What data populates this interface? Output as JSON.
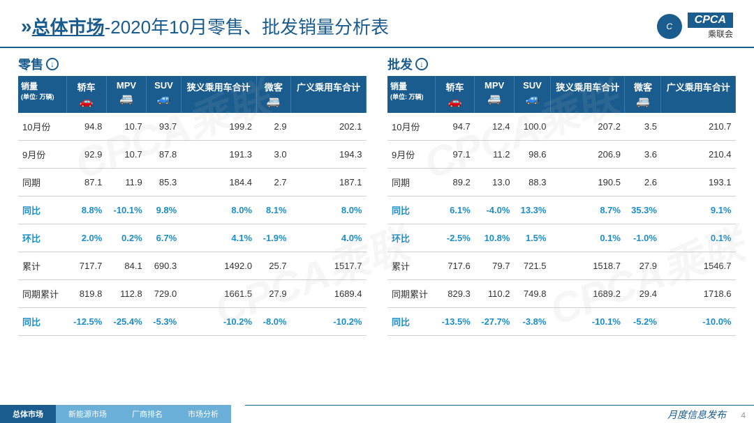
{
  "header": {
    "title_main": "总体市场",
    "title_sub": "-2020年10月零售、批发销量分析表",
    "logo_text": "CPCA",
    "logo_sub": "乘联会"
  },
  "columns": [
    {
      "label": "销量",
      "unit": "(单位: 万辆)",
      "icon": ""
    },
    {
      "label": "轿车",
      "icon": "🚗"
    },
    {
      "label": "MPV",
      "icon": "🚐"
    },
    {
      "label": "SUV",
      "icon": "🚙"
    },
    {
      "label": "狭义乘用车合计",
      "icon": ""
    },
    {
      "label": "微客",
      "icon": "🚐"
    },
    {
      "label": "广义乘用车合计",
      "icon": ""
    }
  ],
  "tables": {
    "retail": {
      "title": "零售",
      "rows": [
        {
          "label": "10月份",
          "hl": false,
          "v": [
            "94.8",
            "10.7",
            "93.7",
            "199.2",
            "2.9",
            "202.1"
          ]
        },
        {
          "label": "9月份",
          "hl": false,
          "v": [
            "92.9",
            "10.7",
            "87.8",
            "191.3",
            "3.0",
            "194.3"
          ]
        },
        {
          "label": "同期",
          "hl": false,
          "v": [
            "87.1",
            "11.9",
            "85.3",
            "184.4",
            "2.7",
            "187.1"
          ]
        },
        {
          "label": "同比",
          "hl": true,
          "v": [
            "8.8%",
            "-10.1%",
            "9.8%",
            "8.0%",
            "8.1%",
            "8.0%"
          ]
        },
        {
          "label": "环比",
          "hl": true,
          "v": [
            "2.0%",
            "0.2%",
            "6.7%",
            "4.1%",
            "-1.9%",
            "4.0%"
          ]
        },
        {
          "label": "累计",
          "hl": false,
          "v": [
            "717.7",
            "84.1",
            "690.3",
            "1492.0",
            "25.7",
            "1517.7"
          ]
        },
        {
          "label": "同期累计",
          "hl": false,
          "v": [
            "819.8",
            "112.8",
            "729.0",
            "1661.5",
            "27.9",
            "1689.4"
          ]
        },
        {
          "label": "同比",
          "hl": true,
          "v": [
            "-12.5%",
            "-25.4%",
            "-5.3%",
            "-10.2%",
            "-8.0%",
            "-10.2%"
          ]
        }
      ]
    },
    "wholesale": {
      "title": "批发",
      "rows": [
        {
          "label": "10月份",
          "hl": false,
          "v": [
            "94.7",
            "12.4",
            "100.0",
            "207.2",
            "3.5",
            "210.7"
          ]
        },
        {
          "label": "9月份",
          "hl": false,
          "v": [
            "97.1",
            "11.2",
            "98.6",
            "206.9",
            "3.6",
            "210.4"
          ]
        },
        {
          "label": "同期",
          "hl": false,
          "v": [
            "89.2",
            "13.0",
            "88.3",
            "190.5",
            "2.6",
            "193.1"
          ]
        },
        {
          "label": "同比",
          "hl": true,
          "v": [
            "6.1%",
            "-4.0%",
            "13.3%",
            "8.7%",
            "35.3%",
            "9.1%"
          ]
        },
        {
          "label": "环比",
          "hl": true,
          "v": [
            "-2.5%",
            "10.8%",
            "1.5%",
            "0.1%",
            "-1.0%",
            "0.1%"
          ]
        },
        {
          "label": "累计",
          "hl": false,
          "v": [
            "717.6",
            "79.7",
            "721.5",
            "1518.7",
            "27.9",
            "1546.7"
          ]
        },
        {
          "label": "同期累计",
          "hl": false,
          "v": [
            "829.3",
            "110.2",
            "749.8",
            "1689.2",
            "29.4",
            "1718.6"
          ]
        },
        {
          "label": "同比",
          "hl": true,
          "v": [
            "-13.5%",
            "-27.7%",
            "-3.8%",
            "-10.1%",
            "-5.2%",
            "-10.0%"
          ]
        }
      ]
    }
  },
  "footer": {
    "tabs": [
      "总体市场",
      "新能源市场",
      "厂商排名",
      "市场分析"
    ],
    "active_tab": 0,
    "right_text": "月度信息发布",
    "page": "4"
  },
  "watermark": "CPCA乘联"
}
